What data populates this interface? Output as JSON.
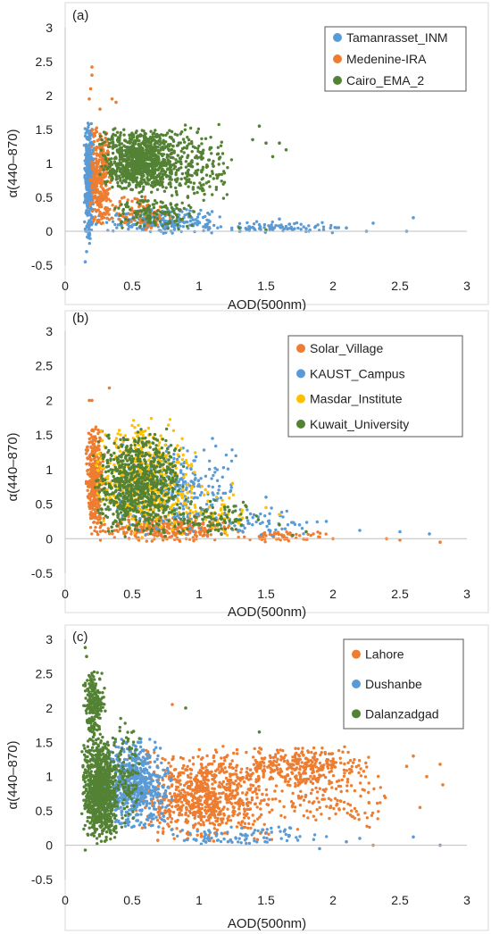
{
  "colors": {
    "blue": "#5b9bd5",
    "orange": "#ed7d31",
    "green": "#548235",
    "yellow": "#ffc000",
    "axis": "#bfbfbf",
    "border": "#d9d9d9"
  },
  "chart_data": [
    {
      "type": "scatter",
      "panel_label": "(a)",
      "xlabel": "AOD(500nm)",
      "ylabel": "α(440–870)",
      "xlim": [
        0,
        3
      ],
      "ylim": [
        -0.5,
        3
      ],
      "xticks": [
        "0",
        "0.5",
        "1",
        "1.5",
        "2",
        "2.5",
        "3"
      ],
      "yticks": [
        "-0.5",
        "0",
        "0.5",
        "1",
        "1.5",
        "2",
        "2.5",
        "3"
      ],
      "legend_position": "top-right",
      "grid": false,
      "series": [
        {
          "name": "Tamanrasset_INM",
          "color": "#5b9bd5",
          "clusters": [
            {
              "n": 380,
              "x": [
                0.14,
                0.22
              ],
              "y": [
                -0.2,
                1.7
              ]
            },
            {
              "n": 260,
              "x": [
                0.2,
                1.2
              ],
              "y": [
                -0.05,
                0.35
              ]
            },
            {
              "n": 90,
              "x": [
                1.0,
                2.1
              ],
              "y": [
                -0.05,
                0.15
              ]
            }
          ],
          "points": [
            {
              "x": 2.6,
              "y": 0.2
            },
            {
              "x": 2.55,
              "y": 0.0
            },
            {
              "x": 2.3,
              "y": 0.12
            },
            {
              "x": 2.25,
              "y": 0.0
            },
            {
              "x": 2.1,
              "y": 0.05
            },
            {
              "x": 0.15,
              "y": -0.45
            },
            {
              "x": 0.16,
              "y": -0.3
            },
            {
              "x": 1.6,
              "y": 0.18
            },
            {
              "x": 1.8,
              "y": 0.04
            }
          ]
        },
        {
          "name": "Medenine-IRA",
          "color": "#ed7d31",
          "clusters": [
            {
              "n": 330,
              "x": [
                0.18,
                0.35
              ],
              "y": [
                0.0,
                1.6
              ]
            },
            {
              "n": 80,
              "x": [
                0.3,
                0.8
              ],
              "y": [
                0.0,
                0.6
              ]
            }
          ],
          "points": [
            {
              "x": 0.2,
              "y": 2.42
            },
            {
              "x": 0.2,
              "y": 2.3
            },
            {
              "x": 0.19,
              "y": 2.1
            },
            {
              "x": 0.18,
              "y": 1.95
            },
            {
              "x": 0.35,
              "y": 1.95
            },
            {
              "x": 0.38,
              "y": 1.9
            },
            {
              "x": 0.26,
              "y": 1.8
            }
          ]
        },
        {
          "name": "Cairo_EMA_2",
          "color": "#548235",
          "clusters": [
            {
              "n": 900,
              "x": [
                0.25,
                0.85
              ],
              "y": [
                0.55,
                1.55
              ]
            },
            {
              "n": 260,
              "x": [
                0.6,
                1.25
              ],
              "y": [
                0.4,
                1.6
              ]
            },
            {
              "n": 140,
              "x": [
                0.3,
                1.0
              ],
              "y": [
                0.0,
                0.55
              ]
            }
          ],
          "points": [
            {
              "x": 1.4,
              "y": 1.35
            },
            {
              "x": 1.45,
              "y": 1.55
            },
            {
              "x": 1.5,
              "y": 1.3
            },
            {
              "x": 1.55,
              "y": 1.1
            },
            {
              "x": 1.6,
              "y": 1.3
            },
            {
              "x": 1.65,
              "y": 1.2
            },
            {
              "x": 1.3,
              "y": 0.05
            },
            {
              "x": 1.5,
              "y": 0.02
            }
          ]
        }
      ]
    },
    {
      "type": "scatter",
      "panel_label": "(b)",
      "xlabel": "AOD(500nm)",
      "ylabel": "α(440–870)",
      "xlim": [
        0,
        3
      ],
      "ylim": [
        -0.5,
        3
      ],
      "xticks": [
        "0",
        "0.5",
        "1",
        "1.5",
        "2",
        "2.5",
        "3"
      ],
      "yticks": [
        "-0.5",
        "0",
        "0.5",
        "1",
        "1.5",
        "2",
        "2.5",
        "3"
      ],
      "legend_position": "top-right",
      "grid": false,
      "series": [
        {
          "name": "Solar_Village",
          "color": "#ed7d31",
          "clusters": [
            {
              "n": 380,
              "x": [
                0.15,
                0.3
              ],
              "y": [
                0.0,
                1.7
              ]
            },
            {
              "n": 320,
              "x": [
                0.2,
                1.3
              ],
              "y": [
                -0.05,
                0.35
              ]
            },
            {
              "n": 60,
              "x": [
                1.2,
                2.0
              ],
              "y": [
                -0.05,
                0.12
              ]
            }
          ],
          "points": [
            {
              "x": 0.18,
              "y": 2.0
            },
            {
              "x": 0.2,
              "y": 2.0
            },
            {
              "x": 0.33,
              "y": 2.18
            },
            {
              "x": 2.8,
              "y": -0.05
            },
            {
              "x": 2.5,
              "y": -0.02
            },
            {
              "x": 2.4,
              "y": 0.0
            },
            {
              "x": 2.0,
              "y": 0.0
            },
            {
              "x": 1.9,
              "y": 0.02
            }
          ]
        },
        {
          "name": "KAUST_Campus",
          "color": "#5b9bd5",
          "clusters": [
            {
              "n": 320,
              "x": [
                0.3,
                1.3
              ],
              "y": [
                0.0,
                1.4
              ]
            },
            {
              "n": 60,
              "x": [
                1.1,
                1.9
              ],
              "y": [
                0.0,
                0.5
              ]
            }
          ],
          "points": [
            {
              "x": 2.72,
              "y": 0.07
            },
            {
              "x": 2.5,
              "y": 0.1
            },
            {
              "x": 2.2,
              "y": 0.12
            },
            {
              "x": 1.95,
              "y": 0.25
            },
            {
              "x": 1.75,
              "y": 0.2
            },
            {
              "x": 1.1,
              "y": 1.45
            },
            {
              "x": 1.5,
              "y": 0.6
            }
          ]
        },
        {
          "name": "Masdar_Institute",
          "color": "#ffc000",
          "clusters": [
            {
              "n": 500,
              "x": [
                0.2,
                1.0
              ],
              "y": [
                0.0,
                1.75
              ]
            },
            {
              "n": 60,
              "x": [
                0.8,
                1.4
              ],
              "y": [
                0.0,
                0.8
              ]
            }
          ],
          "points": [
            {
              "x": 1.5,
              "y": 0.45
            },
            {
              "x": 1.6,
              "y": 0.35
            },
            {
              "x": 1.8,
              "y": 0.1
            },
            {
              "x": 1.25,
              "y": 0.8
            }
          ]
        },
        {
          "name": "Kuwait_University",
          "color": "#548235",
          "clusters": [
            {
              "n": 800,
              "x": [
                0.2,
                0.9
              ],
              "y": [
                0.0,
                1.6
              ]
            },
            {
              "n": 100,
              "x": [
                0.7,
                1.5
              ],
              "y": [
                0.0,
                0.6
              ]
            }
          ],
          "points": [
            {
              "x": 1.7,
              "y": 0.05
            },
            {
              "x": 1.8,
              "y": 0.1
            },
            {
              "x": 1.6,
              "y": 0.2
            }
          ]
        }
      ]
    },
    {
      "type": "scatter",
      "panel_label": "(c)",
      "xlabel": "AOD(500nm)",
      "ylabel": "α(440–870)",
      "xlim": [
        0,
        3
      ],
      "ylim": [
        -0.5,
        3
      ],
      "xticks": [
        "0",
        "0.5",
        "1",
        "1.5",
        "2",
        "2.5",
        "3"
      ],
      "yticks": [
        "-0.5",
        "0",
        "0.5",
        "1",
        "1.5",
        "2",
        "2.5",
        "3"
      ],
      "legend_position": "top-right",
      "grid": false,
      "series": [
        {
          "name": "Lahore",
          "color": "#ed7d31",
          "clusters": [
            {
              "n": 800,
              "x": [
                0.5,
                1.6
              ],
              "y": [
                0.0,
                1.45
              ]
            },
            {
              "n": 320,
              "x": [
                1.2,
                2.3
              ],
              "y": [
                0.85,
                1.45
              ]
            },
            {
              "n": 120,
              "x": [
                1.5,
                2.5
              ],
              "y": [
                0.2,
                1.1
              ]
            }
          ],
          "points": [
            {
              "x": 2.8,
              "y": 1.18
            },
            {
              "x": 2.82,
              "y": 0.88
            },
            {
              "x": 2.7,
              "y": 1.0
            },
            {
              "x": 2.65,
              "y": 0.55
            },
            {
              "x": 2.6,
              "y": 1.3
            },
            {
              "x": 2.55,
              "y": 1.15
            },
            {
              "x": 2.3,
              "y": 0.0
            },
            {
              "x": 0.8,
              "y": 2.05
            }
          ]
        },
        {
          "name": "Dushanbe",
          "color": "#5b9bd5",
          "clusters": [
            {
              "n": 600,
              "x": [
                0.25,
                0.8
              ],
              "y": [
                0.2,
                1.6
              ]
            },
            {
              "n": 90,
              "x": [
                0.7,
                2.0
              ],
              "y": [
                -0.02,
                0.3
              ]
            }
          ],
          "points": [
            {
              "x": 2.8,
              "y": 0.0
            },
            {
              "x": 2.6,
              "y": 0.12
            },
            {
              "x": 2.2,
              "y": 0.1
            },
            {
              "x": 2.1,
              "y": 0.05
            },
            {
              "x": 1.9,
              "y": -0.05
            }
          ]
        },
        {
          "name": "Dalanzadgad",
          "color": "#548235",
          "clusters": [
            {
              "n": 900,
              "x": [
                0.12,
                0.4
              ],
              "y": [
                0.0,
                1.6
              ]
            },
            {
              "n": 220,
              "x": [
                0.13,
                0.3
              ],
              "y": [
                1.5,
                2.6
              ]
            },
            {
              "n": 120,
              "x": [
                0.3,
                0.6
              ],
              "y": [
                0.2,
                1.9
              ]
            }
          ],
          "points": [
            {
              "x": 0.15,
              "y": 2.88
            },
            {
              "x": 0.16,
              "y": 2.75
            },
            {
              "x": 0.15,
              "y": -0.07
            },
            {
              "x": 0.9,
              "y": 2.0
            },
            {
              "x": 1.45,
              "y": 1.65
            }
          ]
        }
      ]
    }
  ]
}
